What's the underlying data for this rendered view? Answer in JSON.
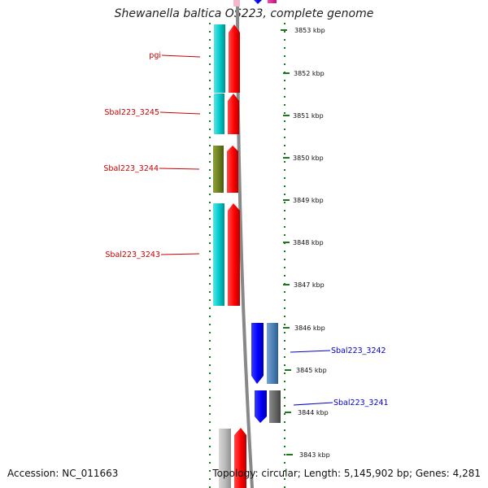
{
  "title": "Shewanella baltica OS223, complete genome",
  "footer": {
    "accession": "Accession: NC_011663",
    "summary": "Topology: circular; Length: 5,145,902 bp; Genes: 4,281"
  },
  "ruler": {
    "unit": "kbp",
    "ticks": [
      {
        "kbp": 3853,
        "label": "3853 kbp"
      },
      {
        "kbp": 3852,
        "label": "3852 kbp"
      },
      {
        "kbp": 3851,
        "label": "3851 kbp"
      },
      {
        "kbp": 3850,
        "label": "3850 kbp"
      },
      {
        "kbp": 3849,
        "label": "3849 kbp"
      },
      {
        "kbp": 3848,
        "label": "3848 kbp"
      },
      {
        "kbp": 3847,
        "label": "3847 kbp"
      },
      {
        "kbp": 3846,
        "label": "3846 kbp"
      },
      {
        "kbp": 3845,
        "label": "3845 kbp"
      },
      {
        "kbp": 3844,
        "label": "3844 kbp"
      },
      {
        "kbp": 3843,
        "label": "3843 kbp"
      }
    ]
  },
  "features": [
    {
      "label": "pgi",
      "strand": "minus",
      "color": "#cc0000"
    },
    {
      "label": "Sbal223_3245",
      "strand": "minus",
      "color": "#cc0000"
    },
    {
      "label": "Sbal223_3244",
      "strand": "minus",
      "color": "#cc0000"
    },
    {
      "label": "Sbal223_3243",
      "strand": "minus",
      "color": "#cc0000"
    },
    {
      "label": "Sbal223_3242",
      "strand": "plus",
      "color": "#0000cc"
    },
    {
      "label": "Sbal223_3241",
      "strand": "plus",
      "color": "#0000cc"
    }
  ],
  "colors": {
    "cds_minus": "#ff0000",
    "cds_plus": "#0000ff",
    "cog_cyan": "#00c8c8",
    "cog_olive": "#6b7f1e",
    "cog_steel": "#4a7fb5",
    "cog_gray": "#666666",
    "cog_light_gray": "#b8b8b8",
    "cog_magenta": "#e01890",
    "backbone": "#888888",
    "tick": "#1a7a1a"
  }
}
